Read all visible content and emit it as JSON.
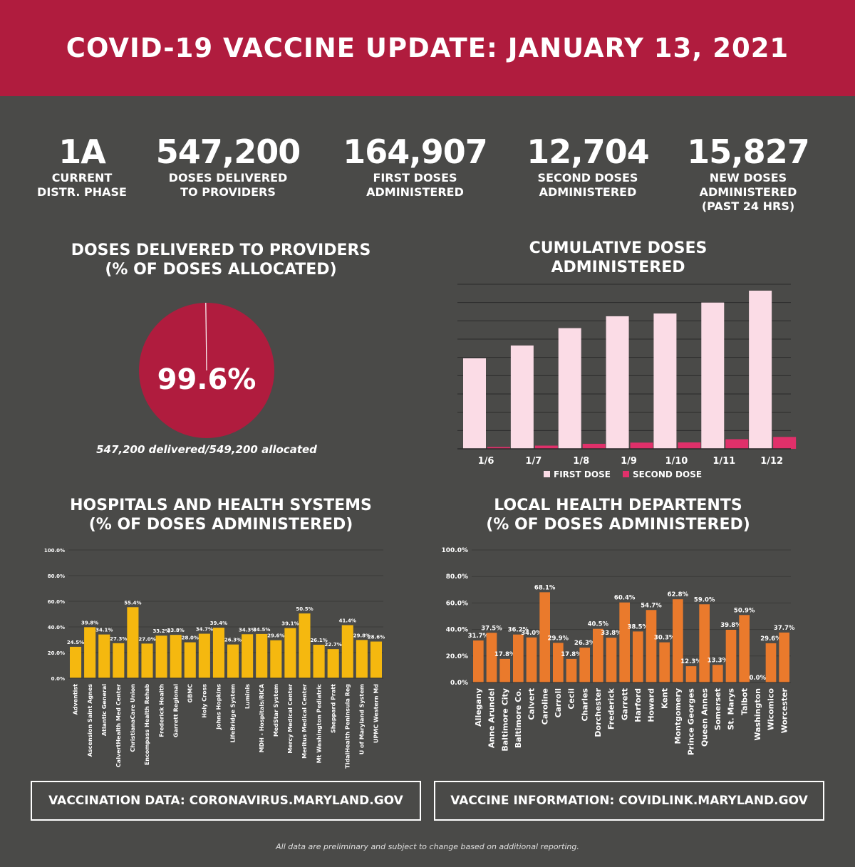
{
  "title": "COVID-19 VACCINE UPDATE: JANUARY 13, 2021",
  "stats": [
    {
      "value": "1A",
      "label": "CURRENT\nDISTR. PHASE"
    },
    {
      "value": "547,200",
      "label": "DOSES DELIVERED\nTO PROVIDERS"
    },
    {
      "value": "164,907",
      "label": "FIRST DOSES\nADMINISTERED"
    },
    {
      "value": "12,704",
      "label": "SECOND DOSES\nADMINISTERED"
    },
    {
      "value": "15,827",
      "label": "NEW DOSES\nADMINISTERED\n(PAST 24 HRS)"
    }
  ],
  "sections": {
    "delivered_title": "DOSES DELIVERED TO PROVIDERS\n(% OF DOSES ALLOCATED)",
    "cumulative_title": "CUMULATIVE DOSES\nADMINISTERED",
    "hospitals_title": "HOSPITALS AND HEALTH SYSTEMS\n(% OF DOSES ADMINISTERED)",
    "lhd_title": "LOCAL HEALTH DEPARTENTS\n(% OF DOSES ADMINISTERED)"
  },
  "colors": {
    "banner": "#b01c3e",
    "background": "#4a4a48",
    "first_dose": "#fbdce6",
    "second_dose": "#e0306a",
    "hospital_bar": "#f5b80f",
    "lhd_bar": "#ea7a2c"
  },
  "chart_data": [
    {
      "type": "pie",
      "name": "delivered",
      "center_label": "99.6%",
      "caption": "547,200 delivered/549,200 allocated",
      "slices": [
        {
          "label": "delivered",
          "value": 99.6
        },
        {
          "label": "not delivered",
          "value": 0.4
        }
      ]
    },
    {
      "type": "bar",
      "name": "cumulative",
      "categories": [
        "1/6",
        "1/7",
        "1/8",
        "1/9",
        "1/10",
        "1/11",
        "1/12"
      ],
      "series": [
        {
          "name": "FIRST DOSE",
          "values": [
            99000,
            113000,
            132000,
            145000,
            148000,
            160000,
            173000
          ]
        },
        {
          "name": "SECOND DOSE",
          "values": [
            2000,
            3500,
            5500,
            6800,
            7000,
            10500,
            13000
          ]
        }
      ],
      "ylim": [
        0,
        180000
      ],
      "grid": true,
      "legend": "bottom"
    },
    {
      "type": "bar",
      "name": "hospitals",
      "categories": [
        "Adventist",
        "Ascension Saint Agnes",
        "Atlantic General",
        "CalvertHealth Med Center",
        "ChristianaCare Union",
        "Encompass Health Rehab",
        "Frederick Health",
        "Garrett Regional",
        "GBMC",
        "Holy Cross",
        "Johns Hopkins",
        "LifeBridge System",
        "Luminis",
        "MDH - Hospitals/RICA",
        "MedStar System",
        "Mercy Medical Center",
        "Meritus Medical Center",
        "Mt Washington Pediatric",
        "Sheppard Pratt",
        "TidalHealth Peninsula Reg",
        "U of Maryland System",
        "UPMC Western Md"
      ],
      "values": [
        24.5,
        39.8,
        34.1,
        27.3,
        55.4,
        27.0,
        33.2,
        33.8,
        28.0,
        34.7,
        39.4,
        26.3,
        34.3,
        34.5,
        29.6,
        39.1,
        50.5,
        26.1,
        22.7,
        41.4,
        29.8,
        28.6
      ],
      "value_labels": [
        "24.5%",
        "39.8%",
        "34.1%",
        "27.3%",
        "55.4%",
        "27.0%",
        "33.2%",
        "33.8%",
        "28.0%",
        "34.7%",
        "39.4%",
        "26.3%",
        "34.3%",
        "34.5%",
        "29.6%",
        "39.1%",
        "50.5%",
        "26.1%",
        "22.7%",
        "41.4%",
        "29.8%",
        "28.6%"
      ],
      "yticks": [
        "0.0%",
        "20.0%",
        "40.0%",
        "60.0%",
        "80.0%",
        "100.0%"
      ],
      "ylim": [
        0,
        100
      ]
    },
    {
      "type": "bar",
      "name": "local_health_departments",
      "categories": [
        "Allegany",
        "Anne Arundel",
        "Baltimore City",
        "Baltimore Co.",
        "Calvert",
        "Caroline",
        "Carroll",
        "Cecil",
        "Charles",
        "Dorchester",
        "Frederick",
        "Garrett",
        "Harford",
        "Howard",
        "Kent",
        "Montgomery",
        "Prince Georges",
        "Queen Annes",
        "Somerset",
        "St. Marys",
        "Talbot",
        "Washington",
        "Wicomico",
        "Worcester"
      ],
      "values": [
        31.7,
        37.5,
        17.8,
        36.2,
        34.0,
        68.1,
        29.9,
        17.8,
        26.3,
        40.5,
        33.8,
        60.4,
        38.5,
        54.7,
        30.3,
        62.8,
        12.3,
        59.0,
        13.3,
        39.8,
        50.9,
        0.0,
        29.6,
        37.7
      ],
      "value_labels": [
        "31.7%",
        "37.5%",
        "17.8%",
        "36.2%",
        "34.0%",
        "68.1%",
        "29.9%",
        "17.8%",
        "26.3%",
        "40.5%",
        "33.8%",
        "60.4%",
        "38.5%",
        "54.7%",
        "30.3%",
        "62.8%",
        "12.3%",
        "59.0%",
        "13.3%",
        "39.8%",
        "50.9%",
        "0.0%",
        "29.6%",
        "37.7%"
      ],
      "yticks": [
        "0.0%",
        "20.0%",
        "40.0%",
        "60.0%",
        "80.0%",
        "100.0%"
      ],
      "ylim": [
        0,
        100
      ]
    }
  ],
  "links": {
    "data": "VACCINATION DATA: CORONAVIRUS.MARYLAND.GOV",
    "info": "VACCINE INFORMATION: COVIDLINK.MARYLAND.GOV"
  },
  "footnote": "All data are preliminary and subject to change based on additional reporting."
}
